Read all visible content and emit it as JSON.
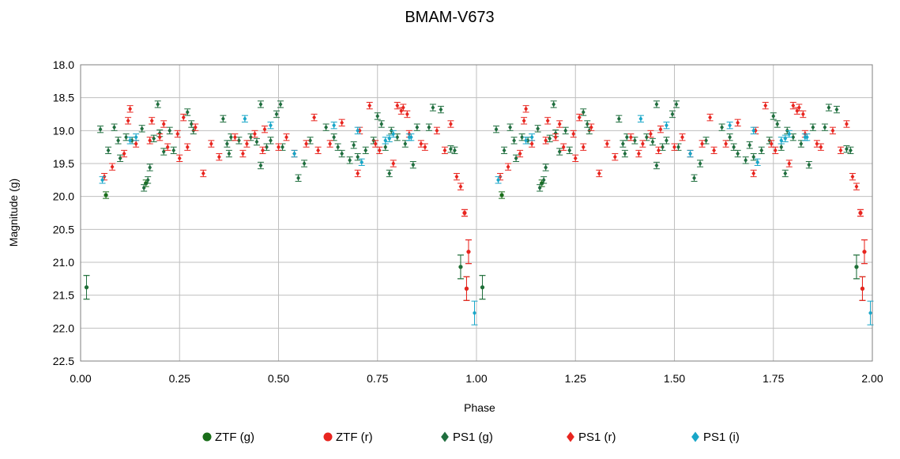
{
  "chart_data": {
    "type": "scatter",
    "title": "BMAM-V673",
    "xlabel": "Phase",
    "ylabel": "Magnitude (g)",
    "xlim": [
      0,
      2
    ],
    "ylim": [
      18.0,
      22.5
    ],
    "y_inverted": true,
    "grid": true,
    "legend_position": "bottom",
    "x_ticks": [
      "0.00",
      "0.25",
      "0.50",
      "0.75",
      "1.00",
      "1.25",
      "1.50",
      "1.75",
      "2.00"
    ],
    "y_ticks": [
      "18.0",
      "18.5",
      "19.0",
      "19.5",
      "20.0",
      "20.5",
      "21.0",
      "21.5",
      "22.0",
      "22.5"
    ],
    "colors": {
      "ztf_g": "#1a6e1a",
      "ztf_r": "#e8251f",
      "ps1_g": "#1f6e3e",
      "ps1_r": "#e8251f",
      "ps1_i": "#18a6c8",
      "grid": "#bfbfbf",
      "axis": "#7f7f7f"
    },
    "series": [
      {
        "name": "ZTF (g)",
        "marker": "circle",
        "points": [
          [
            0.064,
            19.98
          ],
          [
            0.165,
            19.8
          ],
          [
            0.96,
            21.07
          ],
          [
            0.975,
            21.4
          ],
          [
            0.015,
            21.38
          ]
        ]
      },
      {
        "name": "ZTF (r)",
        "marker": "circle",
        "points": [
          [
            0.97,
            20.25
          ],
          [
            0.98,
            20.84
          ],
          [
            0.975,
            21.4
          ]
        ]
      },
      {
        "name": "PS1 (g)",
        "marker": "diamond",
        "points": [
          [
            0.05,
            18.98
          ],
          [
            0.07,
            19.3
          ],
          [
            0.085,
            18.95
          ],
          [
            0.095,
            19.15
          ],
          [
            0.1,
            19.42
          ],
          [
            0.115,
            19.1
          ],
          [
            0.13,
            19.15
          ],
          [
            0.155,
            18.97
          ],
          [
            0.16,
            19.87
          ],
          [
            0.17,
            19.75
          ],
          [
            0.175,
            19.56
          ],
          [
            0.185,
            19.12
          ],
          [
            0.195,
            18.6
          ],
          [
            0.2,
            19.04
          ],
          [
            0.21,
            19.32
          ],
          [
            0.225,
            19.0
          ],
          [
            0.235,
            19.3
          ],
          [
            0.27,
            18.72
          ],
          [
            0.28,
            18.9
          ],
          [
            0.285,
            19.0
          ],
          [
            0.36,
            18.82
          ],
          [
            0.37,
            19.2
          ],
          [
            0.375,
            19.35
          ],
          [
            0.38,
            19.1
          ],
          [
            0.4,
            19.15
          ],
          [
            0.43,
            19.1
          ],
          [
            0.445,
            19.17
          ],
          [
            0.455,
            18.6
          ],
          [
            0.455,
            19.53
          ],
          [
            0.47,
            19.25
          ],
          [
            0.48,
            19.15
          ],
          [
            0.495,
            18.75
          ],
          [
            0.505,
            18.6
          ],
          [
            0.51,
            19.25
          ],
          [
            0.55,
            19.72
          ],
          [
            0.565,
            19.5
          ],
          [
            0.58,
            19.15
          ],
          [
            0.62,
            18.95
          ],
          [
            0.64,
            19.1
          ],
          [
            0.65,
            19.25
          ],
          [
            0.66,
            19.35
          ],
          [
            0.68,
            19.45
          ],
          [
            0.69,
            19.22
          ],
          [
            0.7,
            19.4
          ],
          [
            0.72,
            19.3
          ],
          [
            0.74,
            19.15
          ],
          [
            0.75,
            18.78
          ],
          [
            0.76,
            18.9
          ],
          [
            0.77,
            19.25
          ],
          [
            0.78,
            19.65
          ],
          [
            0.785,
            19.0
          ],
          [
            0.8,
            19.1
          ],
          [
            0.82,
            19.2
          ],
          [
            0.84,
            19.52
          ],
          [
            0.85,
            18.95
          ],
          [
            0.88,
            18.95
          ],
          [
            0.89,
            18.65
          ],
          [
            0.91,
            18.68
          ],
          [
            0.935,
            19.28
          ],
          [
            0.945,
            19.3
          ],
          [
            0.96,
            21.07
          ],
          [
            0.015,
            21.38
          ]
        ]
      },
      {
        "name": "PS1 (r)",
        "marker": "diamond",
        "points": [
          [
            0.06,
            19.7
          ],
          [
            0.08,
            19.55
          ],
          [
            0.11,
            19.35
          ],
          [
            0.12,
            18.85
          ],
          [
            0.125,
            18.67
          ],
          [
            0.14,
            19.2
          ],
          [
            0.175,
            19.15
          ],
          [
            0.18,
            18.85
          ],
          [
            0.2,
            19.1
          ],
          [
            0.21,
            18.9
          ],
          [
            0.22,
            19.25
          ],
          [
            0.245,
            19.05
          ],
          [
            0.25,
            19.42
          ],
          [
            0.26,
            18.8
          ],
          [
            0.27,
            19.25
          ],
          [
            0.29,
            18.95
          ],
          [
            0.31,
            19.65
          ],
          [
            0.33,
            19.2
          ],
          [
            0.35,
            19.4
          ],
          [
            0.39,
            19.1
          ],
          [
            0.41,
            19.35
          ],
          [
            0.42,
            19.2
          ],
          [
            0.44,
            19.05
          ],
          [
            0.46,
            19.3
          ],
          [
            0.465,
            18.98
          ],
          [
            0.5,
            19.25
          ],
          [
            0.52,
            19.1
          ],
          [
            0.54,
            19.35
          ],
          [
            0.57,
            19.2
          ],
          [
            0.59,
            18.8
          ],
          [
            0.6,
            19.3
          ],
          [
            0.63,
            19.2
          ],
          [
            0.66,
            18.88
          ],
          [
            0.7,
            19.65
          ],
          [
            0.705,
            19.0
          ],
          [
            0.73,
            18.62
          ],
          [
            0.745,
            19.2
          ],
          [
            0.755,
            19.3
          ],
          [
            0.79,
            19.5
          ],
          [
            0.8,
            18.62
          ],
          [
            0.81,
            18.7
          ],
          [
            0.815,
            18.65
          ],
          [
            0.825,
            18.75
          ],
          [
            0.83,
            19.05
          ],
          [
            0.86,
            19.2
          ],
          [
            0.87,
            19.25
          ],
          [
            0.9,
            19.0
          ],
          [
            0.92,
            19.3
          ],
          [
            0.935,
            18.9
          ],
          [
            0.95,
            19.7
          ],
          [
            0.96,
            19.85
          ],
          [
            0.97,
            20.25
          ],
          [
            0.98,
            20.84
          ],
          [
            0.975,
            21.4
          ]
        ]
      },
      {
        "name": "PS1 (i)",
        "marker": "diamond",
        "points": [
          [
            0.055,
            19.75
          ],
          [
            0.125,
            19.15
          ],
          [
            0.14,
            19.1
          ],
          [
            0.415,
            18.82
          ],
          [
            0.48,
            18.92
          ],
          [
            0.54,
            19.35
          ],
          [
            0.64,
            18.92
          ],
          [
            0.7,
            19.0
          ],
          [
            0.71,
            19.48
          ],
          [
            0.77,
            19.15
          ],
          [
            0.78,
            19.12
          ],
          [
            0.79,
            19.05
          ],
          [
            0.83,
            19.1
          ],
          [
            0.835,
            19.1
          ],
          [
            0.995,
            21.77
          ]
        ]
      }
    ]
  }
}
